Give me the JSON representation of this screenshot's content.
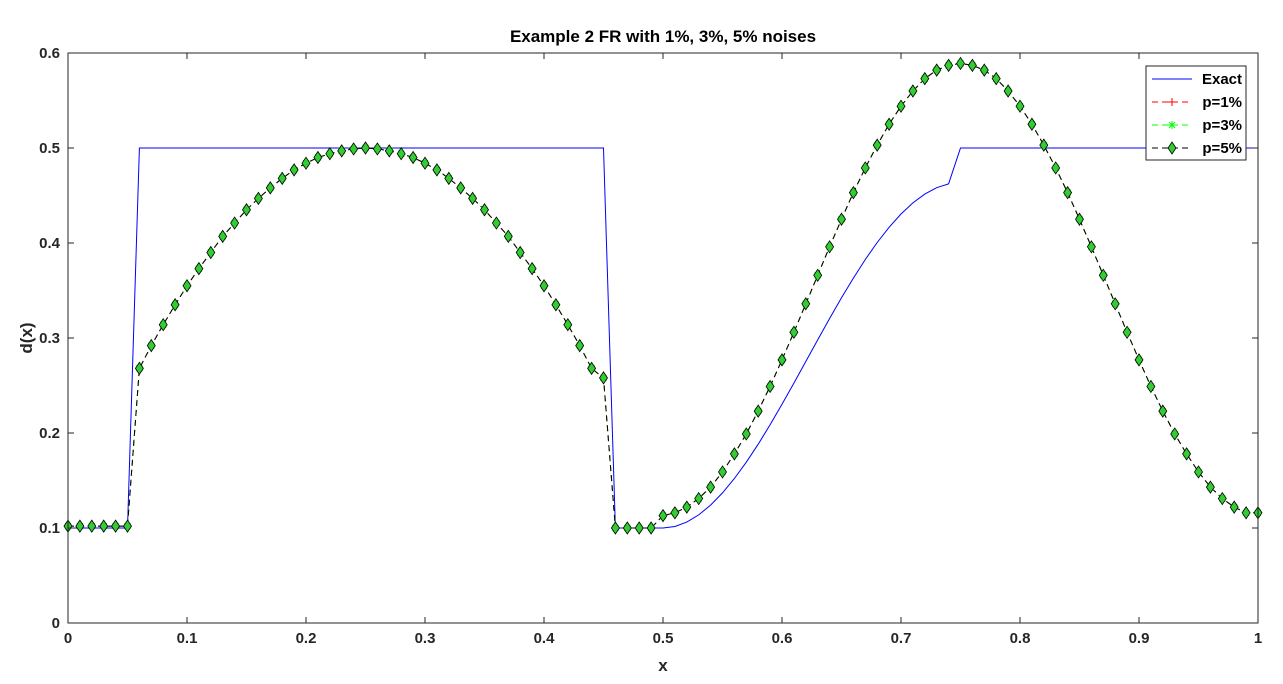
{
  "chart_data": {
    "type": "line",
    "title": "Example 2 FR with 1%, 3%, 5% noises",
    "xlabel": "x",
    "ylabel": "d(x)",
    "xlim": [
      0,
      1
    ],
    "ylim": [
      0,
      0.6
    ],
    "xticks": [
      0,
      0.1,
      0.2,
      0.3,
      0.4,
      0.5,
      0.6,
      0.7,
      0.8,
      0.9,
      1
    ],
    "yticks": [
      0,
      0.1,
      0.2,
      0.3,
      0.4,
      0.5,
      0.6
    ],
    "xtick_labels": [
      "0",
      "0.1",
      "0.2",
      "0.3",
      "0.4",
      "0.5",
      "0.6",
      "0.7",
      "0.8",
      "0.9",
      "1"
    ],
    "ytick_labels": [
      "0",
      "0.1",
      "0.2",
      "0.3",
      "0.4",
      "0.5",
      "0.6"
    ],
    "grid": false,
    "legend_position": "top-right",
    "exact_series": {
      "name": "Exact",
      "color": "#0000ff",
      "style": "solid",
      "x": [
        0,
        0.05,
        0.06,
        0.45,
        0.46,
        0.5,
        0.51,
        0.52,
        0.53,
        0.54,
        0.55,
        0.56,
        0.57,
        0.58,
        0.59,
        0.6,
        0.61,
        0.62,
        0.63,
        0.64,
        0.65,
        0.66,
        0.67,
        0.68,
        0.69,
        0.7,
        0.71,
        0.72,
        0.73,
        0.74,
        0.75,
        0.76,
        0.77,
        0.78,
        0.79,
        0.8,
        0.81,
        0.82,
        0.83,
        0.84,
        0.85,
        0.86,
        0.87,
        0.88,
        0.89,
        0.9,
        0.91,
        0.92,
        0.93,
        0.94,
        0.95,
        0.96,
        0.97,
        0.98,
        0.99,
        1
      ],
      "y": [
        0.1,
        0.1,
        0.5,
        0.5,
        0.1,
        0.1,
        0.1016,
        0.1062,
        0.1138,
        0.1241,
        0.1369,
        0.1521,
        0.1693,
        0.1882,
        0.2086,
        0.2302,
        0.2525,
        0.2753,
        0.298,
        0.3205,
        0.3423,
        0.3631,
        0.3826,
        0.4005,
        0.4165,
        0.4305,
        0.4422,
        0.4515,
        0.4582,
        0.4623,
        0.5,
        0.5,
        0.5,
        0.5,
        0.5,
        0.5,
        0.5,
        0.5,
        0.5,
        0.5,
        0.5,
        0.5,
        0.5,
        0.5,
        0.5,
        0.5,
        0.5,
        0.5,
        0.5,
        0.5,
        0.5,
        0.5,
        0.5,
        0.5,
        0.5,
        0.5
      ]
    },
    "noisy_x": [
      0,
      0.01,
      0.02,
      0.03,
      0.04,
      0.05,
      0.06,
      0.07,
      0.08,
      0.09,
      0.1,
      0.11,
      0.12,
      0.13,
      0.14,
      0.15,
      0.16,
      0.17,
      0.18,
      0.19,
      0.2,
      0.21,
      0.22,
      0.23,
      0.24,
      0.25,
      0.26,
      0.27,
      0.28,
      0.29,
      0.3,
      0.31,
      0.32,
      0.33,
      0.34,
      0.35,
      0.36,
      0.37,
      0.38,
      0.39,
      0.4,
      0.41,
      0.42,
      0.43,
      0.44,
      0.45,
      0.46,
      0.47,
      0.48,
      0.49,
      0.5,
      0.51,
      0.52,
      0.53,
      0.54,
      0.55,
      0.56,
      0.57,
      0.58,
      0.59,
      0.6,
      0.61,
      0.62,
      0.63,
      0.64,
      0.65,
      0.66,
      0.67,
      0.68,
      0.69,
      0.7,
      0.71,
      0.72,
      0.73,
      0.74,
      0.75,
      0.76,
      0.77,
      0.78,
      0.79,
      0.8,
      0.81,
      0.82,
      0.83,
      0.84,
      0.85,
      0.86,
      0.87,
      0.88,
      0.89,
      0.9,
      0.91,
      0.92,
      0.93,
      0.94,
      0.95,
      0.96,
      0.97,
      0.98,
      0.99,
      1
    ],
    "series": [
      {
        "name": "p=1%",
        "color": "#ff0000",
        "marker": "plus",
        "values": [
          0.102,
          0.102,
          0.102,
          0.102,
          0.102,
          0.102,
          0.268,
          0.292,
          0.314,
          0.335,
          0.355,
          0.373,
          0.39,
          0.407,
          0.421,
          0.435,
          0.447,
          0.458,
          0.468,
          0.477,
          0.484,
          0.49,
          0.494,
          0.497,
          0.499,
          0.5,
          0.499,
          0.497,
          0.494,
          0.49,
          0.484,
          0.477,
          0.468,
          0.458,
          0.447,
          0.435,
          0.421,
          0.407,
          0.39,
          0.373,
          0.355,
          0.335,
          0.314,
          0.292,
          0.268,
          0.258,
          0.1,
          0.1,
          0.1,
          0.1,
          0.113,
          0.116,
          0.122,
          0.131,
          0.143,
          0.159,
          0.178,
          0.199,
          0.223,
          0.249,
          0.277,
          0.306,
          0.336,
          0.366,
          0.396,
          0.425,
          0.453,
          0.479,
          0.503,
          0.525,
          0.544,
          0.56,
          0.573,
          0.582,
          0.587,
          0.589,
          0.587,
          0.582,
          0.573,
          0.56,
          0.544,
          0.525,
          0.503,
          0.479,
          0.453,
          0.425,
          0.396,
          0.366,
          0.336,
          0.306,
          0.277,
          0.249,
          0.223,
          0.199,
          0.178,
          0.159,
          0.143,
          0.131,
          0.122,
          0.116,
          0.116
        ]
      },
      {
        "name": "p=3%",
        "color": "#00ff00",
        "marker": "star",
        "values": [
          0.102,
          0.102,
          0.102,
          0.102,
          0.102,
          0.102,
          0.268,
          0.292,
          0.314,
          0.335,
          0.355,
          0.373,
          0.39,
          0.407,
          0.421,
          0.435,
          0.447,
          0.458,
          0.468,
          0.477,
          0.484,
          0.49,
          0.494,
          0.497,
          0.499,
          0.5,
          0.499,
          0.497,
          0.494,
          0.49,
          0.484,
          0.477,
          0.468,
          0.458,
          0.447,
          0.435,
          0.421,
          0.407,
          0.39,
          0.373,
          0.355,
          0.335,
          0.314,
          0.292,
          0.268,
          0.258,
          0.1,
          0.1,
          0.1,
          0.1,
          0.113,
          0.116,
          0.122,
          0.131,
          0.143,
          0.159,
          0.178,
          0.199,
          0.223,
          0.249,
          0.277,
          0.306,
          0.336,
          0.366,
          0.396,
          0.425,
          0.453,
          0.479,
          0.503,
          0.525,
          0.544,
          0.56,
          0.573,
          0.582,
          0.587,
          0.589,
          0.587,
          0.582,
          0.573,
          0.56,
          0.544,
          0.525,
          0.503,
          0.479,
          0.453,
          0.425,
          0.396,
          0.366,
          0.336,
          0.306,
          0.277,
          0.249,
          0.223,
          0.199,
          0.178,
          0.159,
          0.143,
          0.131,
          0.122,
          0.116,
          0.116
        ]
      },
      {
        "name": "p=5%",
        "color": "#000000",
        "marker": "diamond",
        "marker_fill": "#33cc33",
        "values": [
          0.102,
          0.102,
          0.102,
          0.102,
          0.102,
          0.102,
          0.268,
          0.292,
          0.314,
          0.335,
          0.355,
          0.373,
          0.39,
          0.407,
          0.421,
          0.435,
          0.447,
          0.458,
          0.468,
          0.477,
          0.484,
          0.49,
          0.494,
          0.497,
          0.499,
          0.5,
          0.499,
          0.497,
          0.494,
          0.49,
          0.484,
          0.477,
          0.468,
          0.458,
          0.447,
          0.435,
          0.421,
          0.407,
          0.39,
          0.373,
          0.355,
          0.335,
          0.314,
          0.292,
          0.268,
          0.258,
          0.1,
          0.1,
          0.1,
          0.1,
          0.113,
          0.116,
          0.122,
          0.131,
          0.143,
          0.159,
          0.178,
          0.199,
          0.223,
          0.249,
          0.277,
          0.306,
          0.336,
          0.366,
          0.396,
          0.425,
          0.453,
          0.479,
          0.503,
          0.525,
          0.544,
          0.56,
          0.573,
          0.582,
          0.587,
          0.589,
          0.587,
          0.582,
          0.573,
          0.56,
          0.544,
          0.525,
          0.503,
          0.479,
          0.453,
          0.425,
          0.396,
          0.366,
          0.336,
          0.306,
          0.277,
          0.249,
          0.223,
          0.199,
          0.178,
          0.159,
          0.143,
          0.131,
          0.122,
          0.116,
          0.116
        ]
      }
    ]
  }
}
